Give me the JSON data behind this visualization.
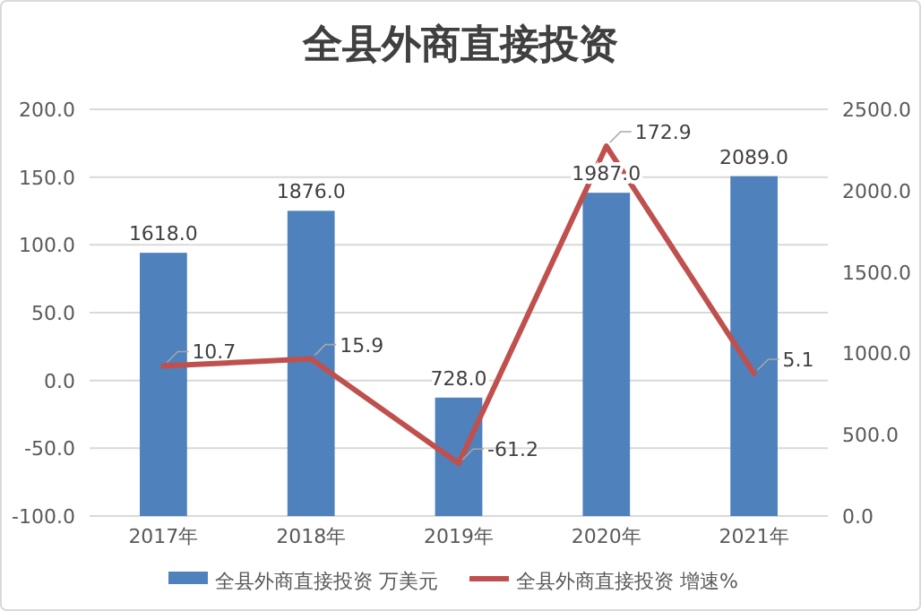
{
  "chart_data": {
    "type": "bar",
    "title": "全县外商直接投资",
    "categories": [
      "2017年",
      "2018年",
      "2019年",
      "2020年",
      "2021年"
    ],
    "series": [
      {
        "name": "全县外商直接投资 万美元",
        "axis": "y2",
        "color": "#4f81bd",
        "values": [
          1618,
          1876,
          728,
          1987,
          2089
        ],
        "value_labels": [
          "1618.0",
          "1876.0",
          "728.0",
          "1987.0",
          "2089.0"
        ]
      },
      {
        "name": "全县外商直接投资 增速%",
        "type": "line",
        "axis": "y",
        "color": "#c0504d",
        "values": [
          10.7,
          15.9,
          -61.2,
          172.9,
          5.1
        ],
        "value_labels": [
          "10.7",
          "15.9",
          "-61.2",
          "172.9",
          "5.1"
        ]
      }
    ],
    "ylim": [
      -100,
      200
    ],
    "yticks": [
      {
        "value": -100,
        "label": "-100.0"
      },
      {
        "value": -50,
        "label": "-50.0"
      },
      {
        "value": 0,
        "label": "0.0"
      },
      {
        "value": 50,
        "label": "50.0"
      },
      {
        "value": 100,
        "label": "100.0"
      },
      {
        "value": 150,
        "label": "150.0"
      },
      {
        "value": 200,
        "label": "200.0"
      }
    ],
    "y2lim": [
      0,
      2500
    ],
    "y2ticks": [
      {
        "value": 0,
        "label": "0.0"
      },
      {
        "value": 500,
        "label": "500.0"
      },
      {
        "value": 1000,
        "label": "1000.0"
      },
      {
        "value": 1500,
        "label": "1500.0"
      },
      {
        "value": 2000,
        "label": "2000.0"
      },
      {
        "value": 2500,
        "label": "2500.0"
      }
    ],
    "grid": "y",
    "legend": "bottom"
  }
}
